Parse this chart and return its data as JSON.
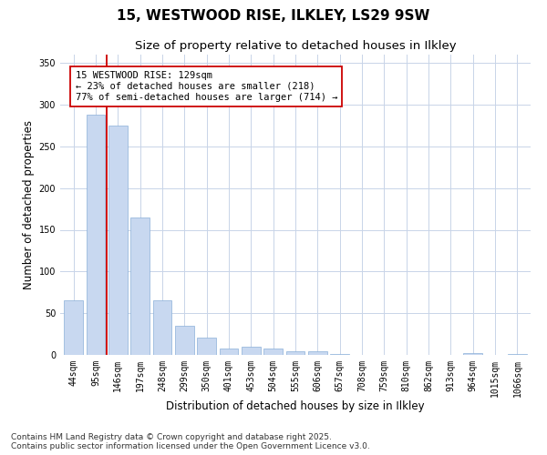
{
  "title": "15, WESTWOOD RISE, ILKLEY, LS29 9SW",
  "subtitle": "Size of property relative to detached houses in Ilkley",
  "xlabel": "Distribution of detached houses by size in Ilkley",
  "ylabel": "Number of detached properties",
  "bar_color": "#c8d8f0",
  "bar_edgecolor": "#8ab0d8",
  "grid_color": "#c8d4e8",
  "background_color": "#ffffff",
  "categories": [
    "44sqm",
    "95sqm",
    "146sqm",
    "197sqm",
    "248sqm",
    "299sqm",
    "350sqm",
    "401sqm",
    "453sqm",
    "504sqm",
    "555sqm",
    "606sqm",
    "657sqm",
    "708sqm",
    "759sqm",
    "810sqm",
    "862sqm",
    "913sqm",
    "964sqm",
    "1015sqm",
    "1066sqm"
  ],
  "values": [
    65,
    288,
    275,
    165,
    65,
    35,
    21,
    8,
    10,
    8,
    4,
    4,
    1,
    0,
    0,
    0,
    0,
    0,
    2,
    0,
    1
  ],
  "vline_color": "#cc0000",
  "vline_pos": 1.5,
  "annotation_line1": "15 WESTWOOD RISE: 129sqm",
  "annotation_line2": "← 23% of detached houses are smaller (218)",
  "annotation_line3": "77% of semi-detached houses are larger (714) →",
  "annotation_box_edgecolor": "#cc0000",
  "ylim": [
    0,
    360
  ],
  "yticks": [
    0,
    50,
    100,
    150,
    200,
    250,
    300,
    350
  ],
  "footer": "Contains HM Land Registry data © Crown copyright and database right 2025.\nContains public sector information licensed under the Open Government Licence v3.0.",
  "title_fontsize": 11,
  "subtitle_fontsize": 9.5,
  "axis_label_fontsize": 8.5,
  "tick_fontsize": 7,
  "annotation_fontsize": 7.5,
  "footer_fontsize": 6.5
}
